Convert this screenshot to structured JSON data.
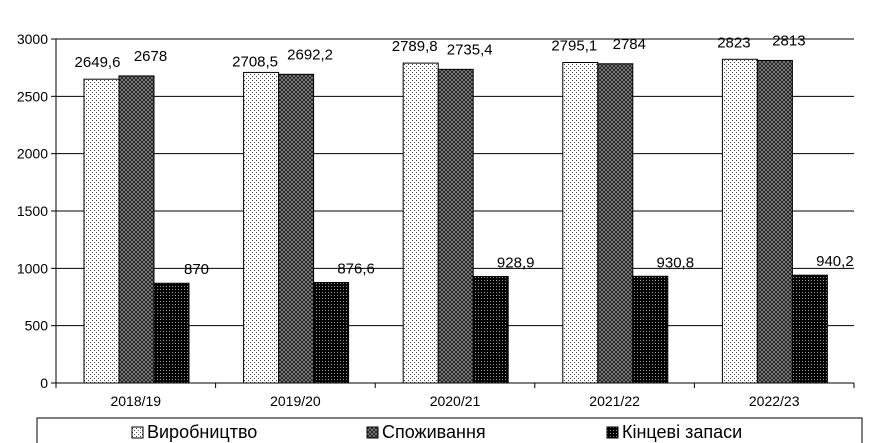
{
  "chart_data": {
    "type": "bar",
    "title": "",
    "xlabel": "",
    "ylabel": "",
    "categories": [
      "2018/19",
      "2019/20",
      "2020/21",
      "2021/22",
      "2022/23"
    ],
    "series": [
      {
        "name": "Виробництво",
        "values": [
          2649.6,
          2708.5,
          2789.8,
          2795.1,
          2823
        ],
        "labels": [
          "2649,6",
          "2708,5",
          "2789,8",
          "2795,1",
          "2823"
        ],
        "pattern": "dots"
      },
      {
        "name": "Споживання",
        "values": [
          2678,
          2692.2,
          2735.4,
          2784,
          2813
        ],
        "labels": [
          "2678",
          "2692,2",
          "2735,4",
          "2784",
          "2813"
        ],
        "pattern": "crosshatch"
      },
      {
        "name": "Кінцеві запаси",
        "values": [
          870,
          876.6,
          928.9,
          930.8,
          940.2
        ],
        "labels": [
          "870",
          "876,6",
          "928,9",
          "930,8",
          "940,2"
        ],
        "pattern": "dense"
      }
    ],
    "ylim": [
      0,
      3000
    ],
    "yticks": [
      0,
      500,
      1000,
      1500,
      2000,
      2500,
      3000
    ],
    "grid": true,
    "legend_position": "bottom"
  }
}
